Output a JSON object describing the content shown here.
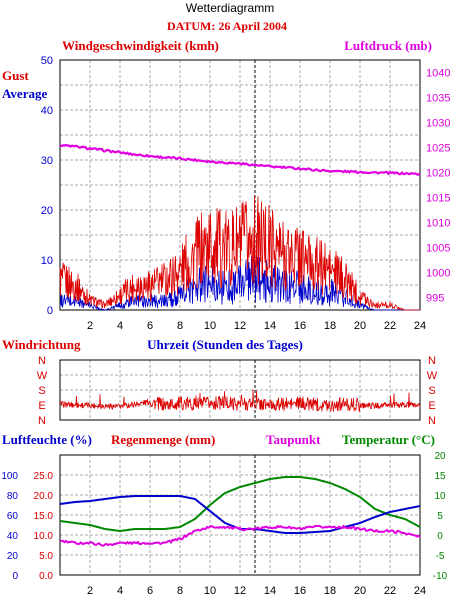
{
  "header": {
    "title": "Wetterdiagramm",
    "date_label": "DATUM: 26 April 2004"
  },
  "colors": {
    "red": "#dd0000",
    "blue": "#0000cc",
    "magenta": "#e000e0",
    "green": "#008800",
    "grid": "#aaaaaa",
    "frame": "#000000"
  },
  "chart_data": [
    {
      "type": "line",
      "name": "wind-pressure-panel",
      "y_left_label": "Windgeschwindigkeit (kmh)",
      "y_right_label": "Luftdruck (mb)",
      "y_left_ticks": [
        "0",
        "10",
        "20",
        "30",
        "40",
        "50"
      ],
      "y_left_range": [
        0,
        50
      ],
      "y_right_ticks": [
        "995",
        "1000",
        "1005",
        "1010",
        "1015",
        "1020",
        "1025",
        "1030",
        "1035",
        "1040"
      ],
      "y_right_range": [
        992.5,
        1042.5
      ],
      "x_ticks": [
        "2",
        "4",
        "6",
        "8",
        "10",
        "12",
        "14",
        "16",
        "18",
        "20",
        "22",
        "24"
      ],
      "x_range": [
        0,
        24
      ],
      "x_axis_label": "Uhrzeit (Stunden des Tages)",
      "legend": [
        {
          "label": "Gust",
          "color": "#dd0000"
        },
        {
          "label": "Average",
          "color": "#0000cc"
        }
      ],
      "marker_hour": 13,
      "series": [
        {
          "name": "Luftdruck",
          "color": "#e000e0",
          "x": [
            0,
            1,
            2,
            3,
            4,
            5,
            6,
            7,
            8,
            9,
            10,
            11,
            12,
            13,
            14,
            15,
            16,
            17,
            18,
            19,
            20,
            21,
            22,
            23,
            24
          ],
          "y": [
            1025.5,
            1025.2,
            1024.8,
            1024.4,
            1024.0,
            1023.6,
            1023.3,
            1023.0,
            1022.8,
            1022.5,
            1022.2,
            1022.0,
            1021.8,
            1021.5,
            1021.2,
            1021.0,
            1020.8,
            1020.5,
            1020.3,
            1020.2,
            1020.1,
            1020.0,
            1019.9,
            1019.8,
            1019.7
          ]
        },
        {
          "name": "Gust",
          "color": "#dd0000",
          "x": [
            0,
            1,
            2,
            3,
            4,
            5,
            6,
            7,
            8,
            9,
            10,
            11,
            12,
            13,
            14,
            15,
            16,
            17,
            18,
            19,
            20,
            21,
            22,
            23,
            24
          ],
          "y": [
            6,
            5,
            2,
            1,
            3,
            5,
            5,
            6,
            8,
            11,
            13,
            12,
            13,
            14,
            13,
            11,
            11,
            9,
            8,
            6,
            3,
            1,
            1,
            0,
            0
          ]
        },
        {
          "name": "Average",
          "color": "#0000cc",
          "x": [
            0,
            1,
            2,
            3,
            4,
            5,
            6,
            7,
            8,
            9,
            10,
            11,
            12,
            13,
            14,
            15,
            16,
            17,
            18,
            19,
            20,
            21,
            22,
            23,
            24
          ],
          "y": [
            2,
            2,
            1,
            0,
            1,
            2,
            2,
            2,
            3,
            5,
            6,
            5,
            6,
            7,
            6,
            5,
            5,
            4,
            4,
            3,
            1,
            0,
            0,
            0,
            0
          ]
        }
      ]
    },
    {
      "type": "line",
      "name": "wind-direction-panel",
      "y_label": "Windrichtung",
      "y_ticks": [
        "E",
        "S",
        "W",
        "N"
      ],
      "y_ticks_full": [
        "N",
        "W",
        "S",
        "E",
        "N"
      ],
      "y_range_deg": [
        0,
        360
      ],
      "series": [
        {
          "name": "Windrichtung",
          "color": "#dd0000",
          "x": [
            0,
            1,
            2,
            3,
            4,
            5,
            6,
            7,
            8,
            9,
            10,
            11,
            12,
            13,
            14,
            15,
            16,
            17,
            18,
            19,
            20,
            21,
            22,
            23,
            24
          ],
          "y": [
            95,
            90,
            88,
            85,
            80,
            95,
            110,
            90,
            100,
            95,
            100,
            105,
            95,
            100,
            90,
            95,
            100,
            95,
            90,
            95,
            90,
            85,
            90,
            90,
            90
          ]
        }
      ]
    },
    {
      "type": "line",
      "name": "humidity-temperature-panel",
      "labels": {
        "humidity": "Luftfeuchte (%)",
        "rain": "Regenmenge (mm)",
        "dewpoint": "Taupunkt",
        "temperature": "Temperatur (°C)"
      },
      "y_humidity_ticks": [
        "0",
        "20",
        "40",
        "60",
        "80",
        "100"
      ],
      "y_rain_ticks": [
        "0.0",
        "5.0",
        "10.0",
        "15.0",
        "20.0",
        "25.0"
      ],
      "y_rain_range": [
        0,
        30
      ],
      "y_temp_ticks": [
        "-10",
        "-5",
        "0",
        "5",
        "10",
        "15",
        "20"
      ],
      "y_temp_range": [
        -10,
        20
      ],
      "x_ticks": [
        "2",
        "4",
        "6",
        "8",
        "10",
        "12",
        "14",
        "16",
        "18",
        "20",
        "22",
        "24"
      ],
      "x_range": [
        0,
        24
      ],
      "marker_hour": 13,
      "series": [
        {
          "name": "Temperatur",
          "color": "#008800",
          "x": [
            0,
            1,
            2,
            3,
            4,
            5,
            6,
            7,
            8,
            9,
            10,
            11,
            12,
            13,
            14,
            15,
            16,
            17,
            18,
            19,
            20,
            21,
            22,
            23,
            24
          ],
          "y": [
            3.5,
            3.0,
            2.5,
            1.5,
            1.0,
            1.5,
            1.5,
            1.5,
            2.0,
            4.0,
            7.5,
            10.5,
            12.0,
            13.0,
            14.0,
            14.5,
            14.5,
            14.0,
            13.0,
            11.5,
            9.5,
            6.5,
            5.0,
            4.0,
            2.0
          ]
        },
        {
          "name": "Luftfeuchte",
          "color": "#0000cc",
          "x": [
            0,
            1,
            2,
            3,
            4,
            5,
            6,
            7,
            8,
            9,
            10,
            11,
            12,
            13,
            14,
            15,
            16,
            17,
            18,
            19,
            20,
            21,
            22,
            23,
            24
          ],
          "y": [
            71,
            73,
            74,
            76,
            78,
            79,
            79,
            79,
            79,
            76,
            64,
            52,
            46,
            46,
            44,
            42,
            42,
            43,
            44,
            48,
            52,
            58,
            63,
            66,
            69
          ]
        },
        {
          "name": "Taupunkt",
          "color": "#e000e0",
          "x": [
            0,
            1,
            2,
            3,
            4,
            5,
            6,
            7,
            8,
            9,
            10,
            11,
            12,
            13,
            14,
            15,
            16,
            17,
            18,
            19,
            20,
            21,
            22,
            23,
            24
          ],
          "y": [
            -1.5,
            -2.0,
            -2.0,
            -2.5,
            -2.0,
            -2.0,
            -2.0,
            -2.0,
            -1.0,
            1.0,
            2.0,
            2.0,
            1.5,
            1.5,
            2.0,
            2.0,
            1.5,
            2.0,
            2.0,
            2.0,
            1.5,
            1.0,
            1.0,
            0.5,
            -0.5
          ]
        }
      ]
    }
  ]
}
